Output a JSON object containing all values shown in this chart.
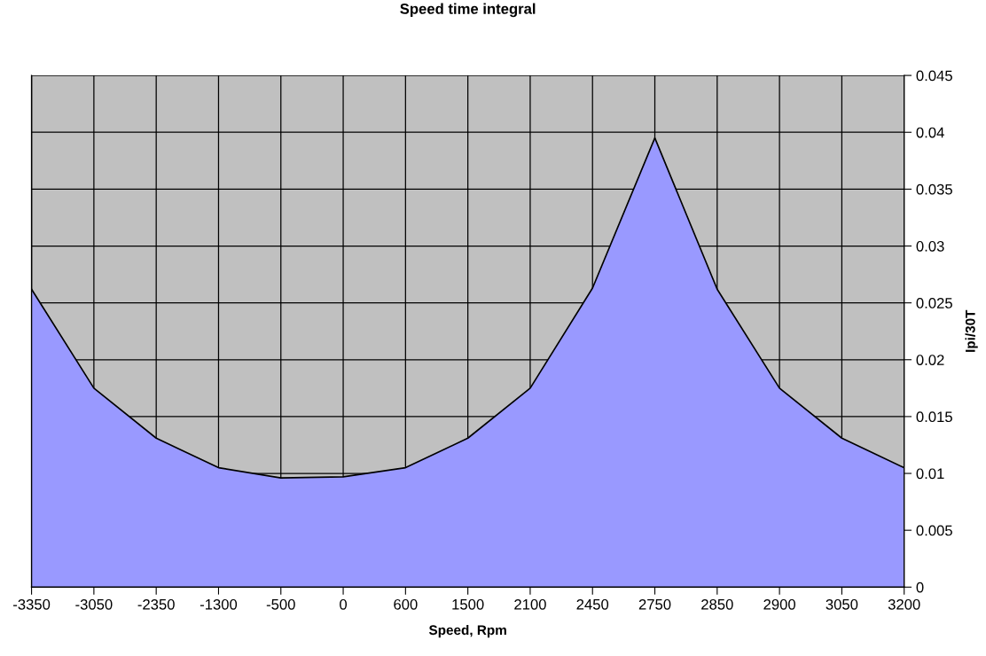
{
  "chart_data": {
    "type": "area",
    "title": "Speed time integral",
    "xlabel": "Speed, Rpm",
    "ylabel": "Ipi/30T",
    "categories": [
      "-3350",
      "-3050",
      "-2350",
      "-1300",
      "-500",
      "0",
      "600",
      "1500",
      "2100",
      "2450",
      "2750",
      "2850",
      "2900",
      "3050",
      "3200"
    ],
    "series": [
      {
        "color": "#9999ff",
        "values": [
          0.0262,
          0.0175,
          0.0131,
          0.0105,
          0.0096,
          0.0097,
          0.0105,
          0.0131,
          0.0175,
          0.0263,
          0.0395,
          0.0262,
          0.0175,
          0.0131,
          0.0105
        ]
      }
    ],
    "ylim": [
      0,
      0.045
    ],
    "yticks": [
      0,
      0.005,
      0.01,
      0.015,
      0.02,
      0.025,
      0.03,
      0.035,
      0.04,
      0.045
    ],
    "grid": true
  }
}
